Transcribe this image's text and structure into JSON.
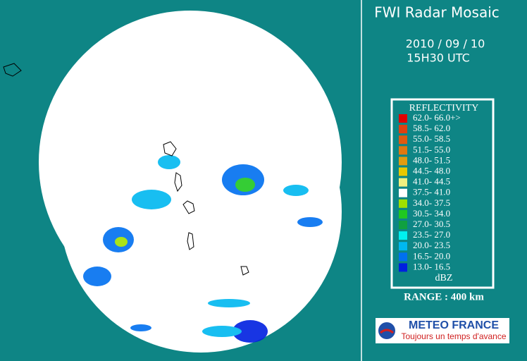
{
  "header": {
    "title": "FWI Radar Mosaic",
    "date": "2010 / 09 / 10",
    "time": "15H30 UTC"
  },
  "legend": {
    "title": "REFLECTIVITY",
    "items": [
      {
        "label": "62.0- 66.0+>",
        "color": "#e00000"
      },
      {
        "label": "58.5- 62.0",
        "color": "#e04010"
      },
      {
        "label": "55.0- 58.5",
        "color": "#e05a10"
      },
      {
        "label": "51.5- 55.0",
        "color": "#e07810"
      },
      {
        "label": "48.0- 51.5",
        "color": "#e09c10"
      },
      {
        "label": "44.5- 48.0",
        "color": "#e8c800"
      },
      {
        "label": "41.0- 44.5",
        "color": "#f0f080"
      },
      {
        "label": "37.5- 41.0",
        "color": "#ffffff"
      },
      {
        "label": "34.0- 37.5",
        "color": "#a0e000"
      },
      {
        "label": "30.5- 34.0",
        "color": "#20c820"
      },
      {
        "label": "27.0- 30.5",
        "color": "#10a040"
      },
      {
        "label": "23.5- 27.0",
        "color": "#00f0f0"
      },
      {
        "label": "20.0- 23.5",
        "color": "#00b8f0"
      },
      {
        "label": "16.5- 20.0",
        "color": "#0070f0"
      },
      {
        "label": "13.0- 16.5",
        "color": "#0020e0"
      }
    ],
    "unit": "dBZ"
  },
  "range": "RANGE : 400 km",
  "logo": {
    "name": "METEO FRANCE",
    "slogan": "Toujours un temps d'avance"
  }
}
